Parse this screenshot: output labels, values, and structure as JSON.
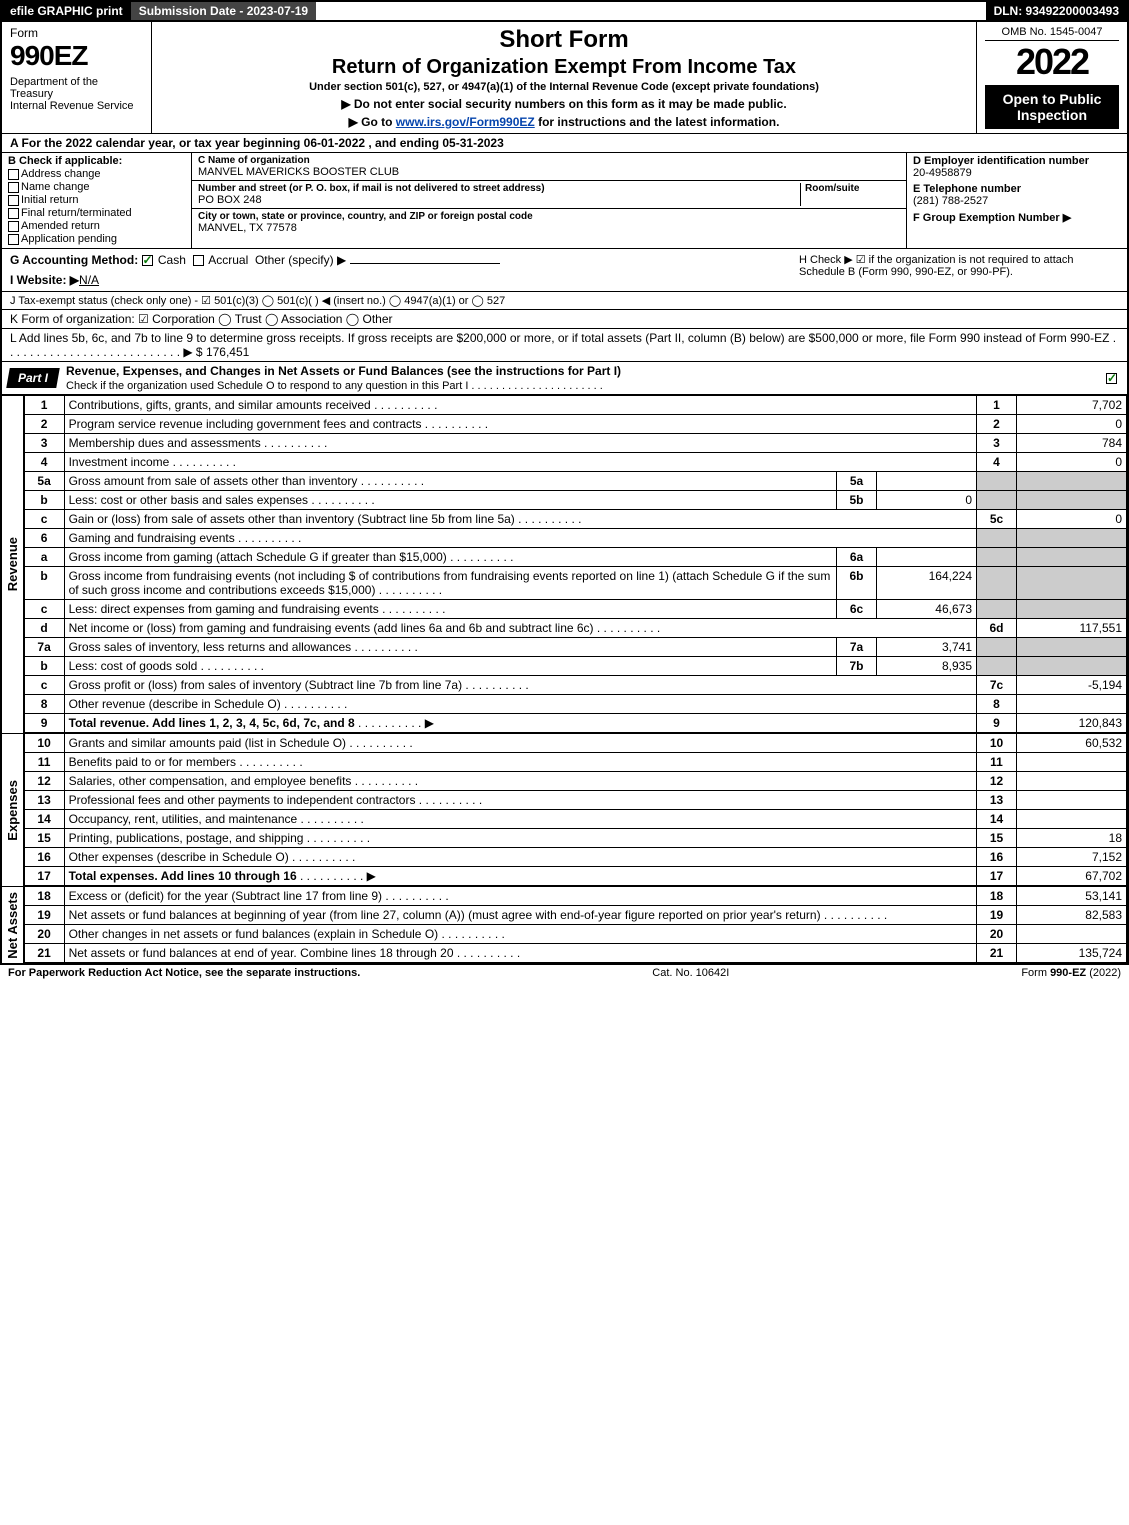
{
  "topbar": {
    "efile": "efile GRAPHIC print",
    "submission": "Submission Date - 2023-07-19",
    "dln": "DLN: 93492200003493"
  },
  "header": {
    "form_label": "Form",
    "form_number": "990EZ",
    "dept": "Department of the Treasury\nInternal Revenue Service",
    "title_short": "Short Form",
    "title_main": "Return of Organization Exempt From Income Tax",
    "subtitle": "Under section 501(c), 527, or 4947(a)(1) of the Internal Revenue Code (except private foundations)",
    "instr1": "▶ Do not enter social security numbers on this form as it may be made public.",
    "instr2_pre": "▶ Go to ",
    "instr2_link": "www.irs.gov/Form990EZ",
    "instr2_post": " for instructions and the latest information.",
    "omb": "OMB No. 1545-0047",
    "year": "2022",
    "badge": "Open to Public Inspection"
  },
  "sectionA": "A  For the 2022 calendar year, or tax year beginning 06-01-2022 , and ending 05-31-2023",
  "B": {
    "hdr": "B  Check if applicable:",
    "items": [
      "Address change",
      "Name change",
      "Initial return",
      "Final return/terminated",
      "Amended return",
      "Application pending"
    ]
  },
  "C": {
    "name_lbl": "C Name of organization",
    "name": "MANVEL MAVERICKS BOOSTER CLUB",
    "addr_lbl": "Number and street (or P. O. box, if mail is not delivered to street address)",
    "room_lbl": "Room/suite",
    "addr": "PO BOX 248",
    "city_lbl": "City or town, state or province, country, and ZIP or foreign postal code",
    "city": "MANVEL, TX  77578"
  },
  "D": {
    "ein_lbl": "D Employer identification number",
    "ein": "20-4958879",
    "tel_lbl": "E Telephone number",
    "tel": "(281) 788-2527",
    "grp_lbl": "F Group Exemption Number  ▶"
  },
  "G": {
    "lbl": "G Accounting Method:",
    "cash": "Cash",
    "accrual": "Accrual",
    "other": "Other (specify) ▶"
  },
  "H": "H  Check ▶ ☑ if the organization is not required to attach Schedule B (Form 990, 990-EZ, or 990-PF).",
  "I": {
    "lbl": "I Website: ▶",
    "val": "N/A"
  },
  "J": "J Tax-exempt status (check only one) - ☑ 501(c)(3)  ◯ 501(c)(  ) ◀ (insert no.)  ◯ 4947(a)(1) or  ◯ 527",
  "K": "K Form of organization:  ☑ Corporation  ◯ Trust  ◯ Association  ◯ Other",
  "L": {
    "text": "L Add lines 5b, 6c, and 7b to line 9 to determine gross receipts. If gross receipts are $200,000 or more, or if total assets (Part II, column (B) below) are $500,000 or more, file Form 990 instead of Form 990-EZ  . . . . . . . . . . . . . . . . . . . . . . . . . . . ▶ $",
    "val": "176,451"
  },
  "part1": {
    "tag": "Part I",
    "title": "Revenue, Expenses, and Changes in Net Assets or Fund Balances (see the instructions for Part I)",
    "sub": "Check if the organization used Schedule O to respond to any question in this Part I . . . . . . . . . . . . . . . . . . . . . ."
  },
  "sides": {
    "revenue": "Revenue",
    "expenses": "Expenses",
    "netassets": "Net Assets"
  },
  "rows": [
    {
      "n": "1",
      "d": "Contributions, gifts, grants, and similar amounts received",
      "rn": "1",
      "rv": "7,702"
    },
    {
      "n": "2",
      "d": "Program service revenue including government fees and contracts",
      "rn": "2",
      "rv": "0"
    },
    {
      "n": "3",
      "d": "Membership dues and assessments",
      "rn": "3",
      "rv": "784"
    },
    {
      "n": "4",
      "d": "Investment income",
      "rn": "4",
      "rv": "0"
    },
    {
      "n": "5a",
      "d": "Gross amount from sale of assets other than inventory",
      "mn": "5a",
      "mv": "",
      "shade_r": true
    },
    {
      "n": "b",
      "d": "Less: cost or other basis and sales expenses",
      "mn": "5b",
      "mv": "0",
      "shade_r": true
    },
    {
      "n": "c",
      "d": "Gain or (loss) from sale of assets other than inventory (Subtract line 5b from line 5a)",
      "rn": "5c",
      "rv": "0"
    },
    {
      "n": "6",
      "d": "Gaming and fundraising events",
      "shade_r": true,
      "no_mid": true
    },
    {
      "n": "a",
      "d": "Gross income from gaming (attach Schedule G if greater than $15,000)",
      "mn": "6a",
      "mv": "",
      "shade_r": true
    },
    {
      "n": "b",
      "d": "Gross income from fundraising events (not including $                    of contributions from fundraising events reported on line 1) (attach Schedule G if the sum of such gross income and contributions exceeds $15,000)",
      "mn": "6b",
      "mv": "164,224",
      "shade_r": true
    },
    {
      "n": "c",
      "d": "Less: direct expenses from gaming and fundraising events",
      "mn": "6c",
      "mv": "46,673",
      "shade_r": true
    },
    {
      "n": "d",
      "d": "Net income or (loss) from gaming and fundraising events (add lines 6a and 6b and subtract line 6c)",
      "rn": "6d",
      "rv": "117,551"
    },
    {
      "n": "7a",
      "d": "Gross sales of inventory, less returns and allowances",
      "mn": "7a",
      "mv": "3,741",
      "shade_r": true
    },
    {
      "n": "b",
      "d": "Less: cost of goods sold",
      "mn": "7b",
      "mv": "8,935",
      "shade_r": true
    },
    {
      "n": "c",
      "d": "Gross profit or (loss) from sales of inventory (Subtract line 7b from line 7a)",
      "rn": "7c",
      "rv": "-5,194"
    },
    {
      "n": "8",
      "d": "Other revenue (describe in Schedule O)",
      "rn": "8",
      "rv": ""
    },
    {
      "n": "9",
      "d": "Total revenue. Add lines 1, 2, 3, 4, 5c, 6d, 7c, and 8",
      "bold": true,
      "arrow": true,
      "rn": "9",
      "rv": "120,843"
    }
  ],
  "exp_rows": [
    {
      "n": "10",
      "d": "Grants and similar amounts paid (list in Schedule O)",
      "rn": "10",
      "rv": "60,532"
    },
    {
      "n": "11",
      "d": "Benefits paid to or for members",
      "rn": "11",
      "rv": ""
    },
    {
      "n": "12",
      "d": "Salaries, other compensation, and employee benefits",
      "rn": "12",
      "rv": ""
    },
    {
      "n": "13",
      "d": "Professional fees and other payments to independent contractors",
      "rn": "13",
      "rv": ""
    },
    {
      "n": "14",
      "d": "Occupancy, rent, utilities, and maintenance",
      "rn": "14",
      "rv": ""
    },
    {
      "n": "15",
      "d": "Printing, publications, postage, and shipping",
      "rn": "15",
      "rv": "18"
    },
    {
      "n": "16",
      "d": "Other expenses (describe in Schedule O)",
      "rn": "16",
      "rv": "7,152"
    },
    {
      "n": "17",
      "d": "Total expenses. Add lines 10 through 16",
      "bold": true,
      "arrow": true,
      "rn": "17",
      "rv": "67,702"
    }
  ],
  "net_rows": [
    {
      "n": "18",
      "d": "Excess or (deficit) for the year (Subtract line 17 from line 9)",
      "rn": "18",
      "rv": "53,141"
    },
    {
      "n": "19",
      "d": "Net assets or fund balances at beginning of year (from line 27, column (A)) (must agree with end-of-year figure reported on prior year's return)",
      "rn": "19",
      "rv": "82,583"
    },
    {
      "n": "20",
      "d": "Other changes in net assets or fund balances (explain in Schedule O)",
      "rn": "20",
      "rv": ""
    },
    {
      "n": "21",
      "d": "Net assets or fund balances at end of year. Combine lines 18 through 20",
      "rn": "21",
      "rv": "135,724"
    }
  ],
  "footer": {
    "l": "For Paperwork Reduction Act Notice, see the separate instructions.",
    "c": "Cat. No. 10642I",
    "r": "Form 990-EZ (2022)"
  }
}
